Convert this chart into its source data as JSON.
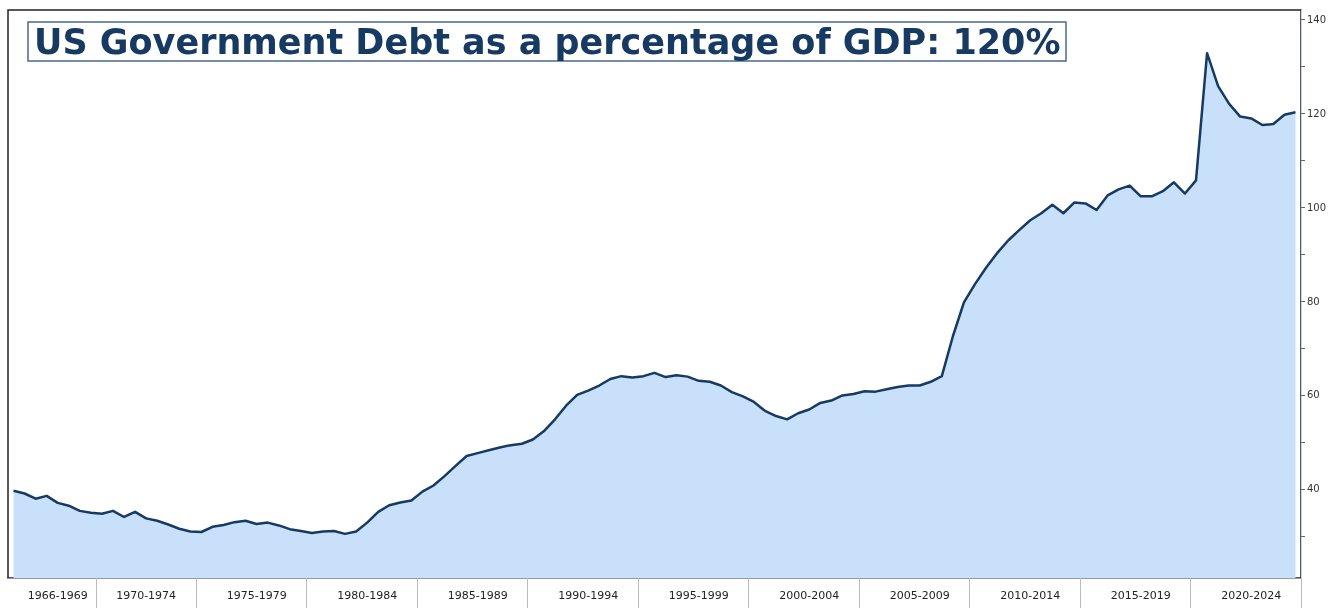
{
  "chart_data": {
    "type": "area",
    "title": "US Government Debt as a percentage of GDP: 120%",
    "color": "#173a63",
    "categories": [
      null,
      null,
      null,
      null,
      "1966-1969",
      null,
      null,
      null,
      null,
      null,
      null,
      null,
      "1970-1974",
      null,
      null,
      null,
      null,
      null,
      null,
      null,
      null,
      null,
      "1975-1979",
      null,
      null,
      null,
      null,
      null,
      null,
      null,
      null,
      null,
      "1980-1984",
      null,
      null,
      null,
      null,
      null,
      null,
      null,
      null,
      null,
      "1985-1989",
      null,
      null,
      null,
      null,
      null,
      null,
      null,
      null,
      null,
      "1990-1994",
      null,
      null,
      null,
      null,
      null,
      null,
      null,
      null,
      null,
      "1995-1999",
      null,
      null,
      null,
      null,
      null,
      null,
      null,
      null,
      null,
      "2000-2004",
      null,
      null,
      null,
      null,
      null,
      null,
      null,
      null,
      null,
      "2005-2009",
      null,
      null,
      null,
      null,
      null,
      null,
      null,
      null,
      null,
      "2010-2014",
      null,
      null,
      null,
      null,
      null,
      null,
      null,
      null,
      null,
      "2015-2019",
      null,
      null,
      null,
      null,
      null,
      null,
      null,
      null,
      null,
      "2020-2024",
      null,
      null,
      null,
      null
    ],
    "values": [
      39.6,
      39,
      37.9,
      38.5,
      37,
      36.4,
      35.3,
      34.9,
      34.7,
      35.3,
      34,
      35.1,
      33.7,
      33.2,
      32.4,
      31.5,
      30.9,
      30.8,
      31.9,
      32.3,
      32.9,
      33.2,
      32.5,
      32.8,
      32.2,
      31.4,
      31,
      30.6,
      30.9,
      31,
      30.4,
      30.9,
      32.8,
      35.1,
      36.5,
      37.1,
      37.5,
      39.4,
      40.7,
      42.7,
      44.9,
      47,
      47.6,
      48.2,
      48.8,
      49.3,
      49.6,
      50.5,
      52.3,
      54.8,
      57.7,
      60,
      60.9,
      62,
      63.4,
      64,
      63.7,
      64,
      64.7,
      63.8,
      64.2,
      63.9,
      63,
      62.8,
      62,
      60.6,
      59.7,
      58.5,
      56.6,
      55.5,
      54.8,
      56.1,
      56.9,
      58.3,
      58.8,
      59.9,
      60.2,
      60.8,
      60.7,
      61.2,
      61.7,
      62,
      62,
      62.8,
      64,
      72.5,
      79.7,
      83.6,
      87.1,
      90.2,
      92.9,
      95.1,
      97.2,
      98.7,
      100.5,
      98.7,
      101,
      100.8,
      99.4,
      102.5,
      103.8,
      104.6,
      102.3,
      102.3,
      103.4,
      105.3,
      102.9,
      105.7,
      132.8,
      125.8,
      122,
      119.3,
      118.9,
      117.5,
      117.7,
      119.7,
      120.2
    ],
    "ylim": [
      21,
      142
    ],
    "yticks": [
      {
        "value": 30,
        "label": null
      },
      40,
      {
        "value": 50,
        "label": null
      },
      60,
      {
        "value": 70,
        "label": null
      },
      80,
      {
        "value": 90,
        "label": null
      },
      100,
      {
        "value": 110,
        "label": null
      },
      120,
      {
        "value": 130,
        "label": null
      },
      140
    ]
  }
}
